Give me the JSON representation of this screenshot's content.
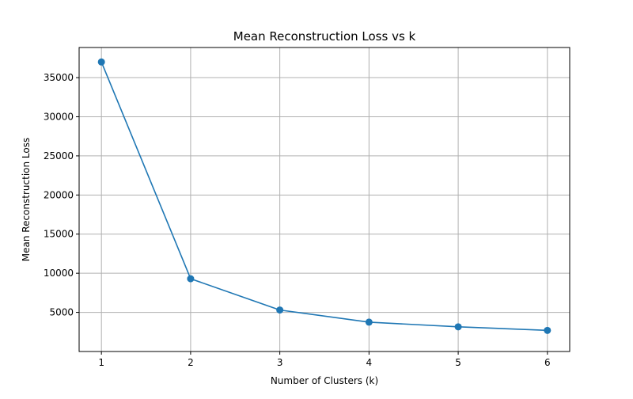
{
  "chart_data": {
    "type": "line",
    "title": "Mean Reconstruction Loss vs k",
    "xlabel": "Number of Clusters (k)",
    "ylabel": "Mean Reconstruction Loss",
    "x": [
      1,
      2,
      3,
      4,
      5,
      6
    ],
    "series": [
      {
        "values": [
          37000,
          9300,
          5300,
          3750,
          3150,
          2700
        ],
        "color": "#1f77b4",
        "marker": "circle"
      }
    ],
    "xlim": [
      0.75,
      6.25
    ],
    "ylim": [
      0,
      38850
    ],
    "xticks": [
      "1",
      "2",
      "3",
      "4",
      "5",
      "6"
    ],
    "yticks": [
      "5000",
      "10000",
      "15000",
      "20000",
      "25000",
      "30000",
      "35000"
    ],
    "ytick_values": [
      5000,
      10000,
      15000,
      20000,
      25000,
      30000,
      35000
    ],
    "grid": true,
    "grid_color": "#b0b0b0",
    "legend": false
  }
}
